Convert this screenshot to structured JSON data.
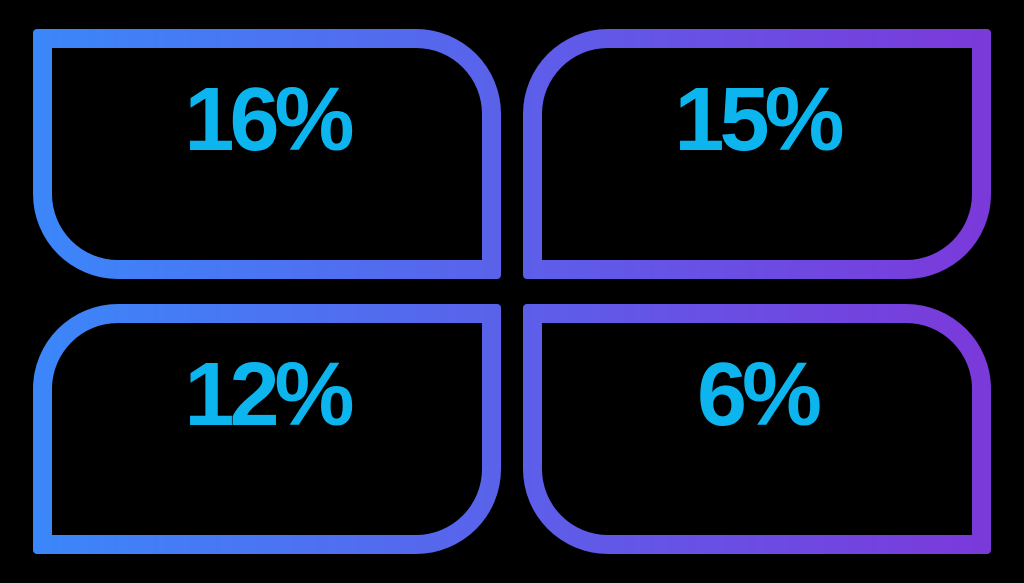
{
  "cards": [
    {
      "id": "top-left",
      "value": "16%"
    },
    {
      "id": "top-right",
      "value": "15%"
    },
    {
      "id": "bottom-left",
      "value": "12%"
    },
    {
      "id": "bottom-right",
      "value": "6%"
    }
  ],
  "colors": {
    "gradient_left": "#3b87fa",
    "gradient_mid_left": "#5a62ea",
    "gradient_mid_right": "#5c5fea",
    "gradient_right": "#7b39da",
    "value_text": "#0db5ef",
    "background": "#000000"
  },
  "chart_data": {
    "type": "table",
    "categories": [
      "top-left",
      "top-right",
      "bottom-left",
      "bottom-right"
    ],
    "values": [
      16,
      15,
      12,
      6
    ],
    "labels": [
      "16%",
      "15%",
      "12%",
      "6%"
    ],
    "unit": "%",
    "layout": "2x2 quadrant stat grid, gradient-outlined rounded boxes on black background"
  }
}
